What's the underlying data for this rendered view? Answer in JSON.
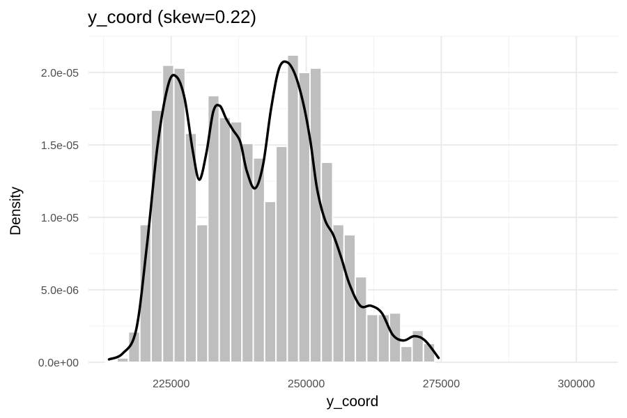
{
  "chart_data": {
    "type": "bar",
    "title": "y_coord (skew=0.22)",
    "xlabel": "y_coord",
    "ylabel": "Density",
    "xlim": [
      209700,
      307700
    ],
    "ylim": [
      0,
      2.25e-05
    ],
    "x_ticks": [
      225000,
      250000,
      275000,
      300000
    ],
    "x_tick_labels": [
      "225000",
      "250000",
      "275000",
      "300000"
    ],
    "y_ticks": [
      0,
      5e-06,
      1e-05,
      1.5e-05,
      2e-05
    ],
    "y_tick_labels": [
      "0.0e+00",
      "5.0e-06",
      "1.0e-05",
      "1.5e-05",
      "2.0e-05"
    ],
    "grid": true,
    "legend": "none",
    "bin_width": 2100,
    "bins": [
      {
        "x": 213950,
        "density": 5e-08
      },
      {
        "x": 216050,
        "density": 3e-07
      },
      {
        "x": 218150,
        "density": 2.1e-06
      },
      {
        "x": 220250,
        "density": 9.5e-06
      },
      {
        "x": 222350,
        "density": 1.74e-05
      },
      {
        "x": 224450,
        "density": 2.05e-05
      },
      {
        "x": 226550,
        "density": 2.03e-05
      },
      {
        "x": 228650,
        "density": 1.58e-05
      },
      {
        "x": 230750,
        "density": 9.5e-06
      },
      {
        "x": 232850,
        "density": 1.84e-05
      },
      {
        "x": 234950,
        "density": 1.69e-05
      },
      {
        "x": 237050,
        "density": 1.66e-05
      },
      {
        "x": 239150,
        "density": 1.51e-05
      },
      {
        "x": 241250,
        "density": 1.41e-05
      },
      {
        "x": 243350,
        "density": 1.11e-05
      },
      {
        "x": 245450,
        "density": 1.49e-05
      },
      {
        "x": 247550,
        "density": 2.12e-05
      },
      {
        "x": 249650,
        "density": 2e-05
      },
      {
        "x": 251750,
        "density": 2.03e-05
      },
      {
        "x": 253850,
        "density": 1.38e-05
      },
      {
        "x": 255950,
        "density": 9.5e-06
      },
      {
        "x": 258050,
        "density": 8.8e-06
      },
      {
        "x": 260150,
        "density": 5.9e-06
      },
      {
        "x": 262250,
        "density": 3.3e-06
      },
      {
        "x": 264350,
        "density": 3.3e-06
      },
      {
        "x": 266450,
        "density": 3.4e-06
      },
      {
        "x": 268550,
        "density": 1.1e-06
      },
      {
        "x": 270650,
        "density": 2.2e-06
      },
      {
        "x": 272750,
        "density": 1.3e-06
      }
    ],
    "bar_color": "#bebebe",
    "bar_edge_color": "#ffffff",
    "density_curve": {
      "color": "#000000",
      "x": [
        213500,
        216000,
        218500,
        220500,
        222500,
        224500,
        226000,
        227500,
        229000,
        230200,
        231500,
        232800,
        234000,
        235200,
        236500,
        237800,
        239000,
        240500,
        242000,
        243500,
        245000,
        246500,
        248000,
        249500,
        250800,
        252000,
        253500,
        255000,
        256500,
        258000,
        260000,
        262000,
        264000,
        266000,
        268000,
        270000,
        272000,
        274500
      ],
      "y": [
        2e-07,
        6e-07,
        2.2e-06,
        8e-06,
        1.5e-05,
        1.92e-05,
        1.97e-05,
        1.82e-05,
        1.46e-05,
        1.26e-05,
        1.44e-05,
        1.73e-05,
        1.77e-05,
        1.68e-05,
        1.6e-05,
        1.52e-05,
        1.32e-05,
        1.2e-05,
        1.36e-05,
        1.75e-05,
        2.03e-05,
        2.07e-05,
        1.98e-05,
        1.78e-05,
        1.52e-05,
        1.2e-05,
        9.8e-06,
        8.8e-06,
        7.2e-06,
        5.4e-06,
        3.9e-06,
        3.9e-06,
        3.4e-06,
        1.9e-06,
        1.5e-06,
        1.8e-06,
        1.5e-06,
        3e-07
      ]
    }
  }
}
